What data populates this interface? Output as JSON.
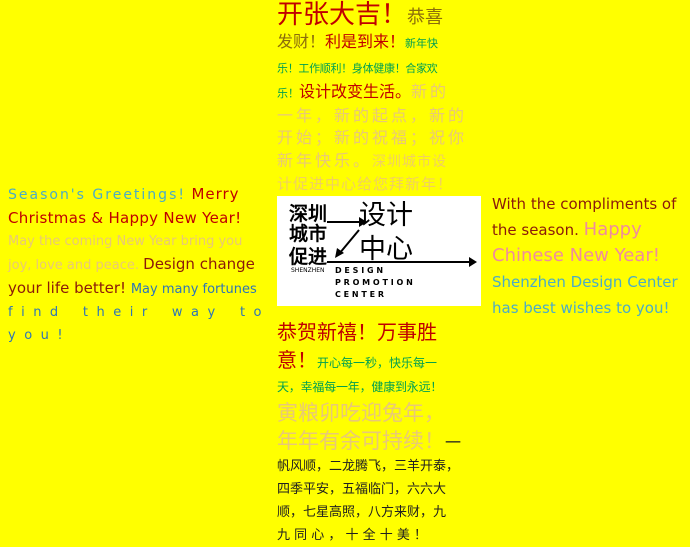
{
  "colors": {
    "background": "#FFFF00",
    "red": "#C00000",
    "orange": "#E36C09",
    "green": "#00A050",
    "blue": "#2E75B6",
    "light_blue": "#4BACC6",
    "pink": "#F08C9C",
    "purple": "#7F3F98"
  },
  "top": {
    "line1": "开张大吉！",
    "line1b": "恭喜",
    "line2a": "发财！",
    "line2b": "利是到来！",
    "line2c": "新年快",
    "line3a": "乐！工作顺利！身体健康！合家欢",
    "line4a": "乐！",
    "line4b": "设计改变生活。",
    "line4c": "新的",
    "line5": "一年，新的起点，新的",
    "line6": "开始；新的祝福；祝你",
    "line7a": "新年快乐。",
    "line7b": "深圳城市设",
    "line8": "计促进中心给您拜新年！"
  },
  "left": {
    "greet_a": "Season's Greetings!",
    "greet_b": "Merry",
    "greet_c": "Christmas & Happy New Year!",
    "may_a": "May the coming New Year bring you",
    "may_b": "joy, love and peace.",
    "may_c": "Design change",
    "life_a": "your life better!",
    "life_b": "May many fortunes",
    "find": "find their way to you!"
  },
  "logo": {
    "cn_left_1": "深圳",
    "cn_left_2": "城市",
    "cn_left_3": "促进",
    "cn_right_1": "设计",
    "cn_right_2": "中心",
    "en_small": "SHENZHEN",
    "en_1": "D E S I G N",
    "en_2": "P R O M O T I O N",
    "en_3": "C E N T E R"
  },
  "right": {
    "l1": "With the compliments of",
    "l2a": "the season.",
    "l2b": "Happy",
    "l3": "Chinese New Year!",
    "l4": "Shenzhen Design Center",
    "l5": "has best wishes to you!"
  },
  "bottom": {
    "b1": "恭贺新禧！万事胜",
    "b2a": "意！",
    "b2b": "开心每一秒，快乐每一",
    "b3": "天，幸福每一年，健康到永远！",
    "b4": "寅粮卯吃迎兔年，",
    "b5a": "年年有余可持续！",
    "b5b": "一",
    "b6": "帆风顺，二龙腾飞，三羊开泰，",
    "b7": "四季平安，五福临门，六六大",
    "b8": "顺，七星高照，八方来财，九",
    "b9": "九 同 心 ， 十 全 十 美 ！"
  }
}
